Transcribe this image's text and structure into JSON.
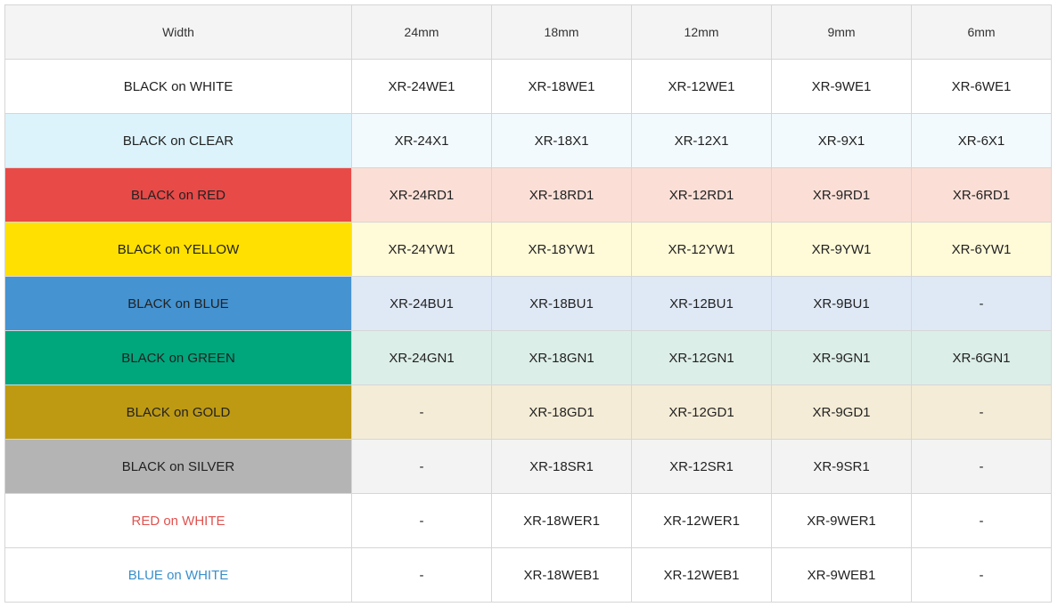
{
  "header": {
    "width_label": "Width",
    "sizes": [
      "24mm",
      "18mm",
      "12mm",
      "9mm",
      "6mm"
    ]
  },
  "rows": [
    {
      "label": "BLACK on WHITE",
      "label_bg": "#ffffff",
      "label_color": "#222222",
      "cell_bg": "#ffffff",
      "cells": [
        "XR-24WE1",
        "XR-18WE1",
        "XR-12WE1",
        "XR-9WE1",
        "XR-6WE1"
      ]
    },
    {
      "label": "BLACK on CLEAR",
      "label_bg": "#dcf3fb",
      "label_color": "#222222",
      "cell_bg": "#f3fafd",
      "cells": [
        "XR-24X1",
        "XR-18X1",
        "XR-12X1",
        "XR-9X1",
        "XR-6X1"
      ]
    },
    {
      "label": "BLACK on RED",
      "label_bg": "#e84a48",
      "label_color": "#222222",
      "cell_bg": "#fbdfd6",
      "cells": [
        "XR-24RD1",
        "XR-18RD1",
        "XR-12RD1",
        "XR-9RD1",
        "XR-6RD1"
      ]
    },
    {
      "label": "BLACK on YELLOW",
      "label_bg": "#ffe000",
      "label_color": "#222222",
      "cell_bg": "#fffad8",
      "cells": [
        "XR-24YW1",
        "XR-18YW1",
        "XR-12YW1",
        "XR-9YW1",
        "XR-6YW1"
      ]
    },
    {
      "label": "BLACK on BLUE",
      "label_bg": "#4593d0",
      "label_color": "#222222",
      "cell_bg": "#dfe9f6",
      "cells": [
        "XR-24BU1",
        "XR-18BU1",
        "XR-12BU1",
        "XR-9BU1",
        "-"
      ]
    },
    {
      "label": "BLACK on GREEN",
      "label_bg": "#00a67c",
      "label_color": "#222222",
      "cell_bg": "#dceee8",
      "cells": [
        "XR-24GN1",
        "XR-18GN1",
        "XR-12GN1",
        "XR-9GN1",
        "XR-6GN1"
      ]
    },
    {
      "label": "BLACK on GOLD",
      "label_bg": "#be9a13",
      "label_color": "#222222",
      "cell_bg": "#f4ecd6",
      "cells": [
        "-",
        "XR-18GD1",
        "XR-12GD1",
        "XR-9GD1",
        "-"
      ]
    },
    {
      "label": "BLACK on SILVER",
      "label_bg": "#b4b4b4",
      "label_color": "#222222",
      "cell_bg": "#f3f3f3",
      "cells": [
        "-",
        "XR-18SR1",
        "XR-12SR1",
        "XR-9SR1",
        "-"
      ]
    },
    {
      "label": "RED on WHITE",
      "label_bg": "#ffffff",
      "label_color": "#e0524f",
      "cell_bg": "#ffffff",
      "cells": [
        "-",
        "XR-18WER1",
        "XR-12WER1",
        "XR-9WER1",
        "-"
      ]
    },
    {
      "label": "BLUE on WHITE",
      "label_bg": "#ffffff",
      "label_color": "#3a8fcb",
      "cell_bg": "#ffffff",
      "cells": [
        "-",
        "XR-18WEB1",
        "XR-12WEB1",
        "XR-9WEB1",
        "-"
      ]
    }
  ]
}
